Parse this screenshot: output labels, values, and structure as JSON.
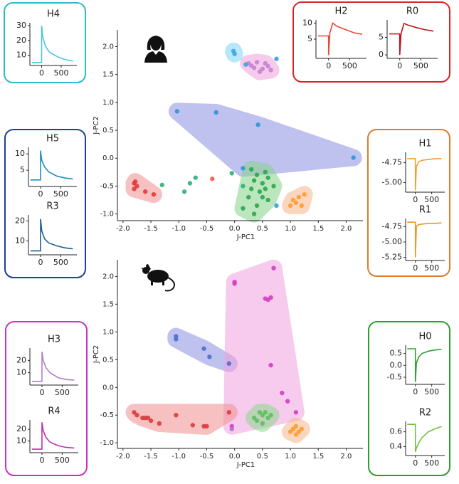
{
  "chart_data": [
    {
      "type": "scatter",
      "xlabel": "J-PC1",
      "ylabel": "J-PC2",
      "xlim": [
        -2.1,
        2.3
      ],
      "ylim": [
        -1.12,
        2.3
      ],
      "xticks": [
        {
          "value": -2,
          "label": "-2.0"
        },
        -1.5,
        {
          "value": -1,
          "label": "-1.0"
        },
        -0.5,
        {
          "value": 0,
          "label": "0.0"
        },
        0.5,
        {
          "value": 1,
          "label": "1.0"
        },
        1.5,
        {
          "value": 2,
          "label": "2.0"
        }
      ],
      "yticks": [
        {
          "value": -1,
          "label": "-1.0"
        },
        -0.5,
        {
          "value": 0,
          "label": "0.0"
        },
        0.5,
        {
          "value": 1,
          "label": "1.0"
        },
        1.5,
        {
          "value": 2,
          "label": "2.0"
        }
      ],
      "series": [
        {
          "color": "#3aa6e0",
          "hull_color": "#7fd6f2",
          "x": [
            -0.02,
            0.0
          ],
          "values": [
            1.92,
            1.87
          ]
        },
        {
          "color": "#c77fd6",
          "hull_color": "#f0a0dc",
          "x": [
            0.25,
            0.4,
            0.5,
            0.6,
            0.45,
            0.55,
            0.35,
            0.65,
            0.3
          ],
          "values": [
            1.7,
            1.72,
            1.6,
            1.65,
            1.55,
            1.7,
            1.62,
            1.58,
            1.66
          ]
        },
        {
          "color": "#2f95d6",
          "hull_color": "#8b90e2",
          "x": [
            -1.03,
            -0.33,
            0.42,
            2.13,
            0.15
          ],
          "values": [
            0.84,
            0.82,
            0.6,
            0.01,
            -0.18
          ]
        },
        {
          "color": "#e03a3a",
          "hull_color": "#f29090",
          "x": [
            -1.8,
            -1.75,
            -1.6,
            -1.45,
            -1.8,
            -1.78
          ],
          "values": [
            -0.45,
            -0.5,
            -0.6,
            -0.65,
            -0.55,
            -0.42
          ]
        },
        {
          "color": "#2ca64a",
          "hull_color": "#86d48a",
          "x": [
            0.35,
            0.4,
            0.5,
            0.55,
            0.45,
            0.6,
            0.3,
            0.25,
            0.5,
            0.4,
            0.15,
            0.6,
            0.7,
            0.35,
            0.3,
            0.55
          ],
          "values": [
            -0.4,
            -0.3,
            -0.45,
            -0.55,
            -0.6,
            -0.35,
            -0.55,
            -0.7,
            -0.7,
            -0.85,
            -0.9,
            -0.75,
            -0.5,
            -1.0,
            -0.2,
            -0.25
          ]
        },
        {
          "color": "#ff9c30",
          "hull_color": "#f6b68a",
          "x": [
            1.05,
            1.1,
            1.15,
            1.2,
            1.25,
            1.0
          ],
          "values": [
            -0.75,
            -0.8,
            -0.7,
            -0.85,
            -0.65,
            -0.85
          ]
        },
        {
          "color": "#2fb07a",
          "x": [
            -1.3,
            -0.9,
            -0.8,
            -0.7,
            -0.05,
            0.15
          ],
          "values": [
            -0.48,
            -0.6,
            -0.45,
            -0.35,
            -0.27,
            -0.5
          ]
        },
        {
          "color": "#3aa0e0",
          "x": [
            0.75,
            0.75,
            0.2
          ],
          "values": [
            1.78,
            -0.85,
            1.68
          ]
        },
        {
          "color": "#f05a4a",
          "x": [
            -0.4
          ],
          "values": [
            -0.37
          ]
        }
      ]
    },
    {
      "type": "scatter",
      "xlabel": "J-PC1",
      "ylabel": "J-PC2",
      "xlim": [
        -2.1,
        2.3
      ],
      "ylim": [
        -1.1,
        2.3
      ],
      "xticks": [
        {
          "value": -2,
          "label": "-2.0"
        },
        -1.5,
        {
          "value": -1,
          "label": "-1.0"
        },
        -0.5,
        {
          "value": 0,
          "label": "0.0"
        },
        0.5,
        {
          "value": 1,
          "label": "1.0"
        },
        1.5,
        {
          "value": 2,
          "label": "2.0"
        }
      ],
      "yticks": [
        {
          "value": -1,
          "label": "-1.0"
        },
        -0.5,
        {
          "value": 0,
          "label": "0.0"
        },
        0.5,
        {
          "value": 1,
          "label": "1.0"
        },
        1.5,
        {
          "value": 2,
          "label": "2.0"
        }
      ],
      "series": [
        {
          "color": "#4a6fd0",
          "hull_color": "#8b90e2",
          "x": [
            -1.05,
            -1.05,
            -0.55,
            -0.45,
            -0.1
          ],
          "values": [
            0.92,
            0.87,
            0.7,
            0.55,
            0.43
          ]
        },
        {
          "color": "#d040c0",
          "hull_color": "#f2a2e0",
          "x": [
            0.0,
            0.0,
            0.7,
            0.55,
            0.65,
            0.6,
            0.65,
            0.85,
            0.95,
            1.1,
            -0.05
          ],
          "values": [
            1.9,
            1.87,
            2.15,
            1.6,
            1.62,
            1.58,
            0.4,
            -0.1,
            -0.25,
            -0.45,
            -0.7
          ]
        },
        {
          "color": "#d83a3a",
          "hull_color": "#f29090",
          "x": [
            -1.8,
            -1.75,
            -1.65,
            -1.55,
            -1.5,
            -1.35,
            -1.05,
            -0.75,
            -0.55,
            -0.5,
            -0.1,
            -1.6
          ],
          "values": [
            -0.45,
            -0.5,
            -0.55,
            -0.55,
            -0.6,
            -0.65,
            -0.5,
            -0.68,
            -0.7,
            -0.7,
            -0.45,
            -0.55
          ]
        },
        {
          "color": "#5cc060",
          "hull_color": "#8ad88a",
          "x": [
            0.45,
            0.5,
            0.55,
            0.6,
            0.4,
            0.5,
            0.35,
            0.65
          ],
          "values": [
            -0.45,
            -0.5,
            -0.45,
            -0.55,
            -0.6,
            -0.65,
            -0.55,
            -0.5
          ]
        },
        {
          "color": "#ff9c30",
          "hull_color": "#f6b68a",
          "x": [
            1.0,
            1.05,
            1.1,
            1.15,
            1.2,
            1.1
          ],
          "values": [
            -0.8,
            -0.75,
            -0.85,
            -0.8,
            -0.75,
            -0.7
          ]
        },
        {
          "color": "#b070c8",
          "x": [
            -0.05
          ],
          "values": [
            -0.75
          ]
        }
      ]
    },
    {
      "type": "line",
      "title": "H4",
      "color": "#4cc7dd",
      "x": [
        -250,
        -1,
        0,
        30,
        100,
        200,
        400,
        600,
        800
      ],
      "values": [
        5,
        5,
        30,
        22,
        16,
        12,
        9,
        7,
        6
      ],
      "xlim": [
        -300,
        900
      ],
      "ylim": [
        3,
        32
      ],
      "xticks": [
        0,
        500
      ],
      "yticks": [
        10,
        20,
        30
      ]
    },
    {
      "type": "line",
      "title": "H2",
      "color": "#e8453c",
      "x": [
        -250,
        -1,
        0,
        30,
        100,
        200,
        400,
        600,
        800
      ],
      "values": [
        6,
        6,
        0,
        7,
        10,
        9,
        8,
        7,
        6.5
      ],
      "xlim": [
        -300,
        900
      ],
      "ylim": [
        -1,
        11
      ],
      "xticks": [
        0,
        500
      ],
      "yticks": [
        5,
        10
      ]
    },
    {
      "type": "line",
      "title": "R0",
      "color": "#c0101a",
      "x": [
        -250,
        -1,
        0,
        30,
        100,
        200,
        400,
        600,
        800
      ],
      "values": [
        6,
        6,
        0,
        6,
        9,
        8.5,
        7.8,
        7.2,
        6.8
      ],
      "xlim": [
        -300,
        900
      ],
      "ylim": [
        -1,
        10
      ],
      "xticks": [
        0,
        500
      ],
      "yticks": [
        0,
        5
      ]
    },
    {
      "type": "line",
      "title": "H5",
      "color": "#1f8fb8",
      "x": [
        -250,
        -1,
        0,
        30,
        100,
        200,
        400,
        600,
        800
      ],
      "values": [
        2,
        2,
        11,
        8,
        6,
        4.5,
        3.2,
        2.6,
        2.3
      ],
      "xlim": [
        -300,
        900
      ],
      "ylim": [
        0,
        12
      ],
      "xticks": [
        0,
        500
      ],
      "yticks": [
        5,
        10
      ]
    },
    {
      "type": "line",
      "title": "R3",
      "color": "#1f5f99",
      "x": [
        -250,
        -1,
        0,
        30,
        100,
        200,
        400,
        600,
        800
      ],
      "values": [
        5,
        5,
        21,
        15,
        11,
        9,
        7.5,
        6.5,
        6
      ],
      "xlim": [
        -300,
        900
      ],
      "ylim": [
        3,
        23
      ],
      "xticks": [
        0,
        500
      ],
      "yticks": [
        10,
        20
      ]
    },
    {
      "type": "line",
      "title": "H1",
      "color": "#f0a030",
      "x": [
        -250,
        -1,
        0,
        30,
        100,
        200,
        400,
        600,
        800
      ],
      "values": [
        -4.7,
        -4.7,
        -5.1,
        -4.8,
        -4.74,
        -4.72,
        -4.71,
        -4.7,
        -4.7
      ],
      "xlim": [
        -300,
        900
      ],
      "ylim": [
        -5.12,
        -4.62
      ],
      "xticks": [
        0,
        500
      ],
      "yticks": [
        -4.75,
        {
          "value": -5,
          "label": "-5.00"
        }
      ]
    },
    {
      "type": "line",
      "title": "R1",
      "color": "#e89a20",
      "x": [
        -250,
        -1,
        0,
        30,
        100,
        200,
        400,
        600,
        800
      ],
      "values": [
        -4.68,
        -4.68,
        -5.25,
        -4.75,
        -4.72,
        -4.71,
        -4.7,
        -4.7,
        -4.69
      ],
      "xlim": [
        -300,
        900
      ],
      "ylim": [
        -5.3,
        -4.62
      ],
      "xticks": [
        0,
        500
      ],
      "yticks": [
        -4.75,
        {
          "value": -5,
          "label": "-5.00"
        },
        -5.25
      ]
    },
    {
      "type": "line",
      "title": "H3",
      "color": "#b080c8",
      "x": [
        -250,
        -1,
        0,
        30,
        100,
        200,
        400,
        600,
        800
      ],
      "values": [
        3,
        3,
        27,
        20,
        14,
        10,
        6,
        4.5,
        4
      ],
      "xlim": [
        -300,
        900
      ],
      "ylim": [
        0,
        30
      ],
      "xticks": [
        0,
        500
      ],
      "yticks": [
        10,
        20
      ]
    },
    {
      "type": "line",
      "title": "R4",
      "color": "#c030b0",
      "x": [
        -250,
        -1,
        0,
        30,
        100,
        200,
        400,
        600,
        800
      ],
      "values": [
        3,
        3,
        26,
        19,
        13,
        9,
        6,
        4.5,
        4
      ],
      "xlim": [
        -300,
        900
      ],
      "ylim": [
        0,
        28
      ],
      "xticks": [
        0,
        500
      ],
      "yticks": [
        10,
        20
      ]
    },
    {
      "type": "line",
      "title": "H0",
      "color": "#30a030",
      "x": [
        -250,
        -1,
        0,
        30,
        100,
        200,
        400,
        600,
        800
      ],
      "values": [
        0.7,
        0.7,
        -0.7,
        0.1,
        0.35,
        0.5,
        0.6,
        0.65,
        0.68
      ],
      "xlim": [
        -300,
        900
      ],
      "ylim": [
        -0.8,
        0.85
      ],
      "xticks": [
        0,
        500
      ],
      "yticks": [
        0.5,
        {
          "value": 0,
          "label": "0.0"
        },
        -0.5
      ]
    },
    {
      "type": "line",
      "title": "R2",
      "color": "#70c040",
      "x": [
        -250,
        -1,
        0,
        30,
        100,
        200,
        400,
        600,
        800
      ],
      "values": [
        0.7,
        0.7,
        0.33,
        0.38,
        0.45,
        0.52,
        0.6,
        0.64,
        0.67
      ],
      "xlim": [
        -300,
        900
      ],
      "ylim": [
        0.28,
        0.74
      ],
      "xticks": [
        0,
        500
      ],
      "yticks": [
        0.6,
        0.4
      ]
    }
  ]
}
